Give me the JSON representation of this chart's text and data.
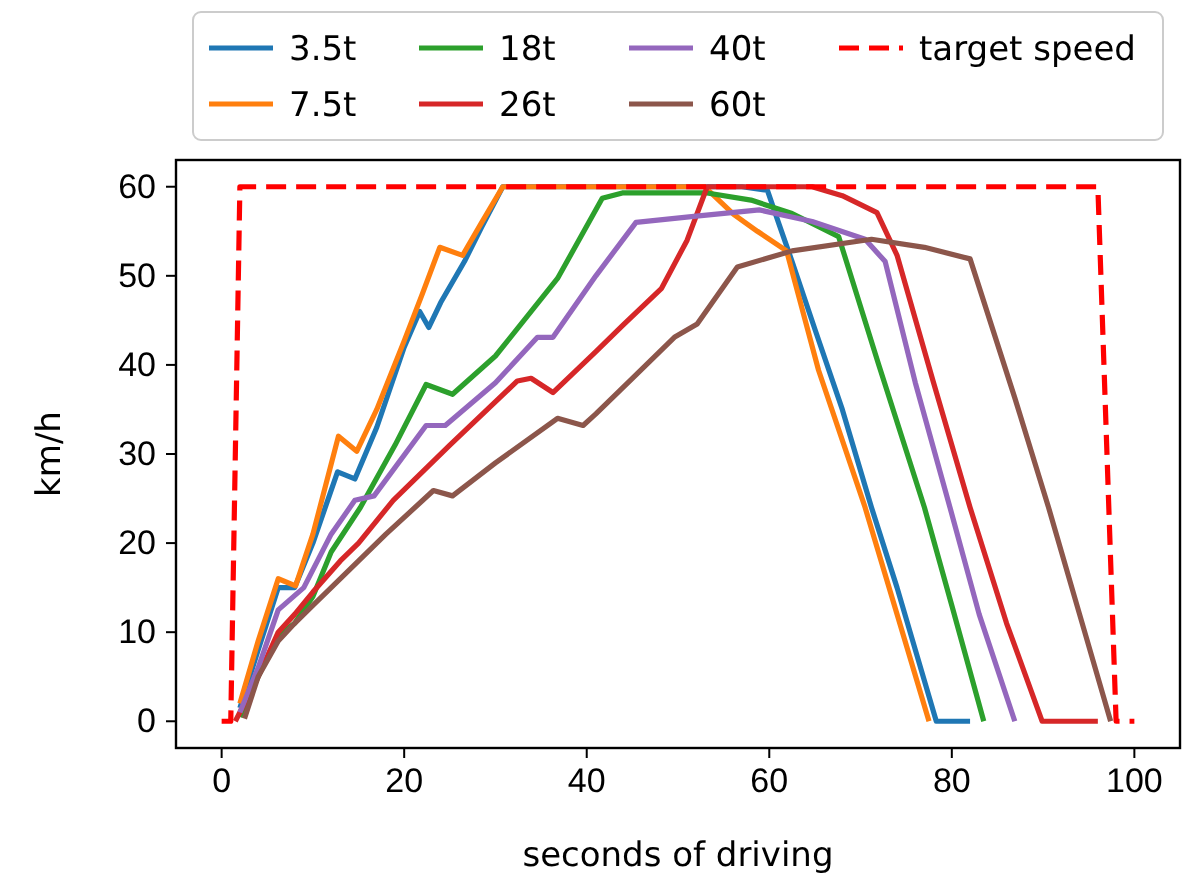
{
  "chart_data": {
    "type": "line",
    "xlabel": "seconds of driving",
    "ylabel": "km/h",
    "xlim": [
      -5,
      105
    ],
    "ylim": [
      -3,
      63
    ],
    "xticks": [
      0,
      20,
      40,
      60,
      80,
      100
    ],
    "yticks": [
      0,
      10,
      20,
      30,
      40,
      50,
      60
    ],
    "grid": false,
    "legend": "top",
    "marker": "none",
    "series": [
      {
        "name": "3.5t",
        "color": "#1f77b4",
        "x": [
          2,
          4,
          6.2,
          8,
          10,
          12.7,
          14.6,
          17,
          20,
          21.7,
          22.7,
          24,
          26.6,
          28.5,
          30.8,
          50,
          57,
          59.8,
          61,
          62.5,
          65,
          68,
          71.2,
          74,
          78.3,
          82
        ],
        "values": [
          1.5,
          8,
          15,
          15,
          20,
          28,
          27.2,
          33,
          42,
          46,
          44.2,
          47,
          51.6,
          55.5,
          60,
          60,
          60,
          59.6,
          56,
          51.6,
          44,
          35,
          24,
          15,
          0,
          0
        ]
      },
      {
        "name": "7.5t",
        "color": "#ff7f0e",
        "x": [
          2,
          4,
          6.2,
          8.1,
          10,
          12.8,
          14.8,
          17,
          20,
          22,
          23.9,
          26.4,
          28.5,
          30.8,
          40,
          52.9,
          56.1,
          58.7,
          61.9,
          65.4,
          70.5,
          74,
          77.5
        ],
        "values": [
          2,
          9,
          16,
          15.2,
          21,
          32,
          30.3,
          35,
          42.7,
          48,
          53.2,
          52.3,
          56,
          60,
          60,
          60,
          56.9,
          55,
          52.8,
          39.4,
          24,
          12,
          0
        ]
      },
      {
        "name": "18t",
        "color": "#2ca02c",
        "x": [
          2,
          4,
          6.2,
          8,
          10,
          12,
          15.2,
          19,
          22.4,
          25.3,
          30,
          36.8,
          41.7,
          43.9,
          53.2,
          58,
          62.5,
          67.6,
          72,
          77,
          80,
          83.5
        ],
        "values": [
          0.5,
          5,
          9.7,
          11,
          14,
          19,
          24,
          31,
          37.8,
          36.7,
          41,
          49.7,
          58.7,
          59.3,
          59.3,
          58.5,
          57,
          54.4,
          40,
          24,
          13,
          0
        ]
      },
      {
        "name": "26t",
        "color": "#d62728",
        "x": [
          1.5,
          4,
          6.2,
          8,
          10,
          13,
          15,
          18.8,
          25,
          32.4,
          33.9,
          36.3,
          41,
          44,
          48.2,
          51,
          53.2,
          58,
          64.7,
          68,
          71.8,
          74,
          78,
          82,
          86,
          89.9,
          96
        ],
        "values": [
          0,
          5,
          10,
          12,
          14.5,
          18,
          20,
          24.8,
          31,
          38.2,
          38.5,
          36.9,
          41.5,
          44.5,
          48.6,
          54,
          60,
          60,
          60,
          59,
          57.1,
          52.3,
          38,
          24,
          11,
          0,
          0
        ]
      },
      {
        "name": "40t",
        "color": "#9467bd",
        "x": [
          2,
          4,
          6.2,
          9,
          12,
          14.6,
          16.7,
          22.4,
          24.5,
          30,
          34.6,
          36.3,
          41,
          45.4,
          52,
          58.9,
          64.7,
          70.5,
          72.7,
          76,
          79.8,
          83,
          86.9
        ],
        "values": [
          1,
          6,
          12.5,
          15,
          21,
          24.8,
          25.3,
          33.2,
          33.2,
          38,
          43.1,
          43.1,
          50,
          56,
          56.7,
          57.4,
          56.1,
          54.1,
          51.6,
          38,
          24,
          12,
          0
        ]
      },
      {
        "name": "60t",
        "color": "#8c564b",
        "x": [
          2.5,
          4,
          6.2,
          8,
          10,
          12,
          15,
          18,
          23.2,
          25.3,
          30,
          36.8,
          39.6,
          41,
          45,
          49.6,
          52.1,
          56.5,
          62.5,
          71.2,
          77,
          82,
          86.9,
          90.6,
          94,
          97.4
        ],
        "values": [
          0.3,
          5,
          9,
          11,
          13,
          15,
          18,
          21,
          25.9,
          25.3,
          29,
          34,
          33.2,
          34.5,
          38.5,
          43.1,
          44.6,
          51,
          52.8,
          54.1,
          53.2,
          51.9,
          36.3,
          24,
          12,
          0
        ]
      },
      {
        "name": "target speed",
        "color": "#ff0000",
        "line_style": "dashed",
        "x": [
          0,
          1,
          2,
          96,
          98,
          100
        ],
        "values": [
          0,
          0,
          60,
          60,
          0,
          0
        ]
      }
    ]
  }
}
